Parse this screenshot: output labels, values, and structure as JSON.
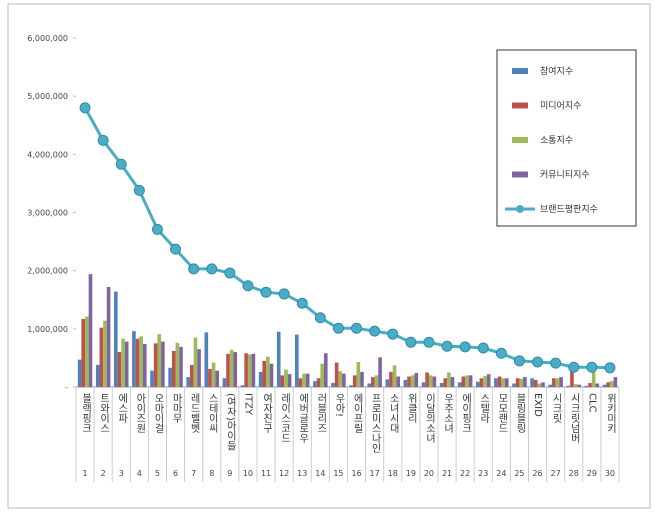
{
  "chart_data": {
    "type": "bar-line",
    "categories": [
      "블랙핑크",
      "트와이스",
      "에스파",
      "아이즈원",
      "오마이걸",
      "마마무",
      "레드벨벳",
      "스테이씨",
      "(여자)아이들",
      "ITZY",
      "여자친구",
      "레이스코드",
      "에버글로우",
      "러블리즈",
      "우아!",
      "에이프릴",
      "프로미스나인",
      "소녀시대",
      "위클리",
      "이달의소녀",
      "우주소녀",
      "에이핑크",
      "스텔라",
      "모모랜드",
      "블링블링",
      "EXID",
      "시크릿",
      "시크릿넘버",
      "CLC",
      "위키미키"
    ],
    "ranks": [
      1,
      2,
      3,
      4,
      5,
      6,
      7,
      8,
      9,
      10,
      11,
      12,
      13,
      14,
      15,
      16,
      17,
      18,
      19,
      20,
      21,
      22,
      23,
      24,
      25,
      26,
      27,
      28,
      29,
      30
    ],
    "ylim": [
      0,
      6000000
    ],
    "yticks": [
      {
        "value": 0,
        "label": "-"
      },
      {
        "value": 1000000,
        "label": "1,000,000"
      },
      {
        "value": 2000000,
        "label": "2,000,000"
      },
      {
        "value": 3000000,
        "label": "3,000,000"
      },
      {
        "value": 4000000,
        "label": "4,000,000"
      },
      {
        "value": 5000000,
        "label": "5,000,000"
      },
      {
        "value": 6000000,
        "label": "6,000,000"
      }
    ],
    "series": [
      {
        "name": "참여지수",
        "type": "bar",
        "color": "#4f81bd",
        "values": [
          470000,
          380000,
          1640000,
          960000,
          280000,
          330000,
          170000,
          940000,
          150000,
          30000,
          260000,
          950000,
          900000,
          100000,
          70000,
          30000,
          60000,
          130000,
          120000,
          80000,
          70000,
          80000,
          90000,
          150000,
          60000,
          150000,
          40000,
          20000,
          20000,
          40000
        ]
      },
      {
        "name": "미디어지수",
        "type": "bar",
        "color": "#c0504d",
        "values": [
          1170000,
          1020000,
          600000,
          830000,
          750000,
          620000,
          380000,
          310000,
          570000,
          580000,
          450000,
          200000,
          150000,
          150000,
          420000,
          200000,
          170000,
          260000,
          180000,
          250000,
          150000,
          180000,
          150000,
          180000,
          150000,
          120000,
          150000,
          370000,
          70000,
          80000
        ]
      },
      {
        "name": "소통지수",
        "type": "bar",
        "color": "#9bbb59",
        "values": [
          1210000,
          1140000,
          830000,
          870000,
          910000,
          760000,
          850000,
          420000,
          640000,
          560000,
          520000,
          300000,
          230000,
          400000,
          270000,
          430000,
          200000,
          370000,
          200000,
          200000,
          250000,
          200000,
          190000,
          150000,
          140000,
          60000,
          150000,
          50000,
          250000,
          100000
        ]
      },
      {
        "name": "커뮤니티지수",
        "type": "bar",
        "color": "#8064a2",
        "values": [
          1940000,
          1720000,
          780000,
          740000,
          780000,
          690000,
          650000,
          280000,
          600000,
          570000,
          400000,
          220000,
          230000,
          580000,
          230000,
          260000,
          510000,
          180000,
          240000,
          180000,
          170000,
          200000,
          220000,
          150000,
          170000,
          80000,
          170000,
          40000,
          60000,
          170000
        ]
      },
      {
        "name": "브랜드평판지수",
        "type": "line",
        "color": "#4bacc6",
        "values": [
          4800000,
          4240000,
          3830000,
          3380000,
          2710000,
          2370000,
          2030000,
          2030000,
          1960000,
          1740000,
          1630000,
          1600000,
          1440000,
          1190000,
          1010000,
          1010000,
          960000,
          910000,
          770000,
          770000,
          700000,
          690000,
          670000,
          580000,
          450000,
          430000,
          410000,
          340000,
          340000,
          330000
        ]
      }
    ]
  }
}
